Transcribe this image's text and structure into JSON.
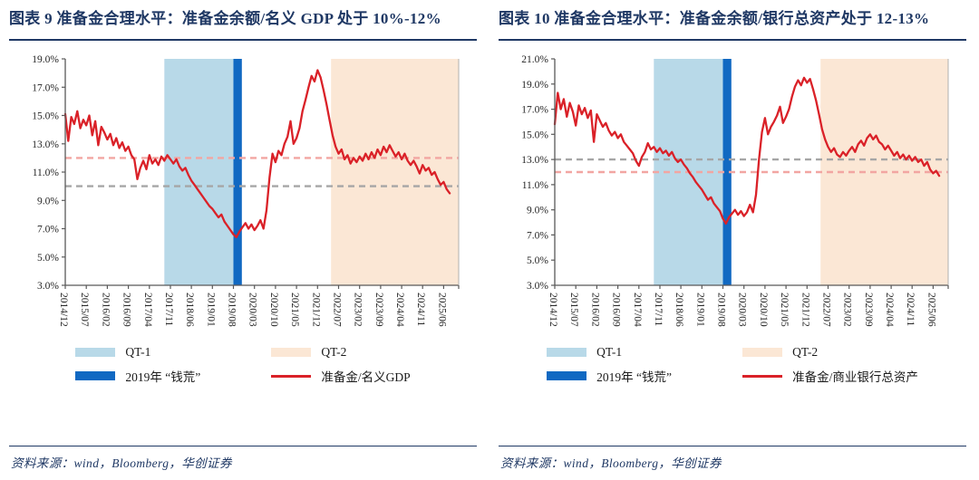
{
  "page": {
    "background": "#ffffff",
    "accent_navy": "#1f3864",
    "axis_color": "#595959",
    "text_color": "#262626"
  },
  "chart_data": [
    {
      "type": "line",
      "figure_label": "图表 9",
      "title": "图表 9  准备金合理水平：准备金余额/名义 GDP 处于 10%-12%",
      "source": "资料来源：wind，Bloomberg，华创证券",
      "y_axis": {
        "min": 3,
        "max": 19,
        "step": 2,
        "unit": "%",
        "tick_labels": [
          "3.0%",
          "5.0%",
          "7.0%",
          "9.0%",
          "11.0%",
          "13.0%",
          "15.0%",
          "17.0%",
          "19.0%"
        ]
      },
      "x_axis": {
        "tick_labels": [
          "2014/12",
          "2015/07",
          "2016/02",
          "2016/09",
          "2017/04",
          "2017/11",
          "2018/06",
          "2019/01",
          "2019/08",
          "2020/03",
          "2020/10",
          "2021/05",
          "2021/12",
          "2022/07",
          "2023/02",
          "2023/09",
          "2024/04",
          "2024/11",
          "2025/06"
        ],
        "months_per_tick": 7,
        "axis_end_month": 131
      },
      "regions": [
        {
          "key": "qt1",
          "name": "QT-1",
          "from_month": 33,
          "to_month": 56,
          "color": "#b8d9e8"
        },
        {
          "key": "cash-crunch-2019",
          "name": "2019年 “钱荒”",
          "from_month": 56,
          "to_month": 58.8,
          "color": "#1169c2"
        },
        {
          "key": "qt2",
          "name": "QT-2",
          "from_month": 88.5,
          "to_month": 131,
          "color": "#fbe7d5"
        }
      ],
      "ref_lines": [
        {
          "value": 12.0,
          "color": "#f2a6a2"
        },
        {
          "value": 10.0,
          "color": "#a6a6a6"
        }
      ],
      "series": [
        {
          "name": "准备金/名义GDP",
          "color": "#da2128",
          "start": "2014/12",
          "frequency": "monthly",
          "values_pct": [
            15.1,
            13.2,
            14.9,
            14.4,
            15.3,
            14.1,
            14.7,
            14.3,
            15.0,
            13.6,
            14.6,
            12.9,
            14.2,
            13.8,
            13.3,
            13.7,
            12.9,
            13.4,
            12.7,
            13.1,
            12.5,
            12.8,
            12.2,
            11.9,
            10.5,
            11.3,
            11.8,
            11.2,
            12.2,
            11.6,
            11.9,
            11.5,
            12.1,
            11.8,
            12.2,
            11.9,
            11.6,
            11.9,
            11.4,
            11.1,
            11.3,
            10.8,
            10.4,
            10.1,
            9.8,
            9.5,
            9.2,
            8.9,
            8.6,
            8.4,
            8.1,
            7.8,
            8.0,
            7.5,
            7.2,
            6.9,
            6.6,
            6.4,
            6.8,
            7.1,
            7.4,
            7.0,
            7.3,
            6.9,
            7.2,
            7.6,
            7.0,
            8.3,
            10.6,
            12.3,
            11.7,
            12.5,
            12.2,
            13.0,
            13.5,
            14.6,
            13.0,
            13.4,
            14.1,
            15.3,
            16.1,
            17.0,
            17.8,
            17.4,
            18.2,
            17.7,
            16.8,
            15.8,
            14.7,
            13.6,
            12.8,
            12.3,
            12.6,
            11.9,
            12.2,
            11.6,
            12.0,
            11.7,
            12.1,
            11.8,
            12.3,
            11.9,
            12.4,
            12.0,
            12.6,
            12.2,
            12.8,
            12.4,
            12.9,
            12.5,
            12.1,
            12.4,
            11.9,
            12.3,
            11.8,
            11.5,
            11.8,
            11.4,
            10.9,
            11.5,
            11.1,
            11.3,
            10.8,
            11.0,
            10.5,
            10.1,
            10.3,
            9.8,
            9.5
          ]
        }
      ],
      "legend": [
        {
          "key": "qt1",
          "label": "QT-1",
          "swatch_type": "area",
          "color": "#b8d9e8"
        },
        {
          "key": "qt2",
          "label": "QT-2",
          "swatch_type": "area",
          "color": "#fbe7d5"
        },
        {
          "key": "cash-crunch-2019",
          "label": "2019年 “钱荒”",
          "swatch_type": "bar",
          "color": "#1169c2"
        },
        {
          "key": "series",
          "label": "准备金/名义GDP",
          "swatch_type": "line",
          "color": "#da2128"
        }
      ]
    },
    {
      "type": "line",
      "figure_label": "图表 10",
      "title": "图表 10  准备金合理水平：准备金余额/银行总资产处于 12-13%",
      "source": "资料来源：wind，Bloomberg，华创证券",
      "y_axis": {
        "min": 3,
        "max": 21,
        "step": 2,
        "unit": "%",
        "tick_labels": [
          "3.0%",
          "5.0%",
          "7.0%",
          "9.0%",
          "11.0%",
          "13.0%",
          "15.0%",
          "17.0%",
          "19.0%",
          "21.0%"
        ]
      },
      "x_axis": {
        "tick_labels": [
          "2014/12",
          "2015/07",
          "2016/02",
          "2016/09",
          "2017/04",
          "2017/11",
          "2018/06",
          "2019/01",
          "2019/08",
          "2020/03",
          "2020/10",
          "2021/05",
          "2021/12",
          "2022/07",
          "2023/02",
          "2023/09",
          "2024/04",
          "2024/11",
          "2025/06"
        ],
        "months_per_tick": 7,
        "axis_end_month": 131
      },
      "regions": [
        {
          "key": "qt1",
          "name": "QT-1",
          "from_month": 33,
          "to_month": 56,
          "color": "#b8d9e8"
        },
        {
          "key": "cash-crunch-2019",
          "name": "2019年 “钱荒”",
          "from_month": 56,
          "to_month": 58.8,
          "color": "#1169c2"
        },
        {
          "key": "qt2",
          "name": "QT-2",
          "from_month": 88.5,
          "to_month": 131,
          "color": "#fbe7d5"
        }
      ],
      "ref_lines": [
        {
          "value": 13.0,
          "color": "#a6a6a6"
        },
        {
          "value": 12.0,
          "color": "#f2a6a2"
        }
      ],
      "series": [
        {
          "name": "准备金/商业银行总资产",
          "color": "#da2128",
          "start": "2014/12",
          "frequency": "monthly",
          "values_pct": [
            15.8,
            18.3,
            17.0,
            17.8,
            16.4,
            17.5,
            16.8,
            15.7,
            17.3,
            16.6,
            17.1,
            16.3,
            16.9,
            14.4,
            16.6,
            16.1,
            15.6,
            15.9,
            15.3,
            14.9,
            15.2,
            14.7,
            15.0,
            14.4,
            14.1,
            13.8,
            13.5,
            12.9,
            12.5,
            13.2,
            13.6,
            14.3,
            13.8,
            14.0,
            13.6,
            13.9,
            13.5,
            13.7,
            13.3,
            13.6,
            13.1,
            12.8,
            13.0,
            12.6,
            12.3,
            11.9,
            11.6,
            11.2,
            10.9,
            10.6,
            10.2,
            9.8,
            10.0,
            9.5,
            9.2,
            8.9,
            8.3,
            7.9,
            8.4,
            8.7,
            9.0,
            8.6,
            8.9,
            8.5,
            8.8,
            9.4,
            8.8,
            10.2,
            13.0,
            15.2,
            16.3,
            15.0,
            15.6,
            16.0,
            16.5,
            17.2,
            15.9,
            16.4,
            17.0,
            18.0,
            18.8,
            19.3,
            18.9,
            19.5,
            19.1,
            19.4,
            18.6,
            17.7,
            16.6,
            15.4,
            14.6,
            14.0,
            13.6,
            13.9,
            13.4,
            13.2,
            13.6,
            13.3,
            13.7,
            14.0,
            13.6,
            14.2,
            14.5,
            14.1,
            14.7,
            15.0,
            14.6,
            14.9,
            14.4,
            14.2,
            13.8,
            14.1,
            13.7,
            13.3,
            13.6,
            13.1,
            13.4,
            13.0,
            13.3,
            12.9,
            13.2,
            12.8,
            13.0,
            12.5,
            12.8,
            12.2,
            11.9,
            12.1,
            11.7
          ]
        }
      ],
      "legend": [
        {
          "key": "qt1",
          "label": "QT-1",
          "swatch_type": "area",
          "color": "#b8d9e8"
        },
        {
          "key": "qt2",
          "label": "QT-2",
          "swatch_type": "area",
          "color": "#fbe7d5"
        },
        {
          "key": "cash-crunch-2019",
          "label": "2019年 “钱荒”",
          "swatch_type": "bar",
          "color": "#1169c2"
        },
        {
          "key": "series",
          "label": "准备金/商业银行总资产",
          "swatch_type": "line",
          "color": "#da2128"
        }
      ]
    }
  ]
}
